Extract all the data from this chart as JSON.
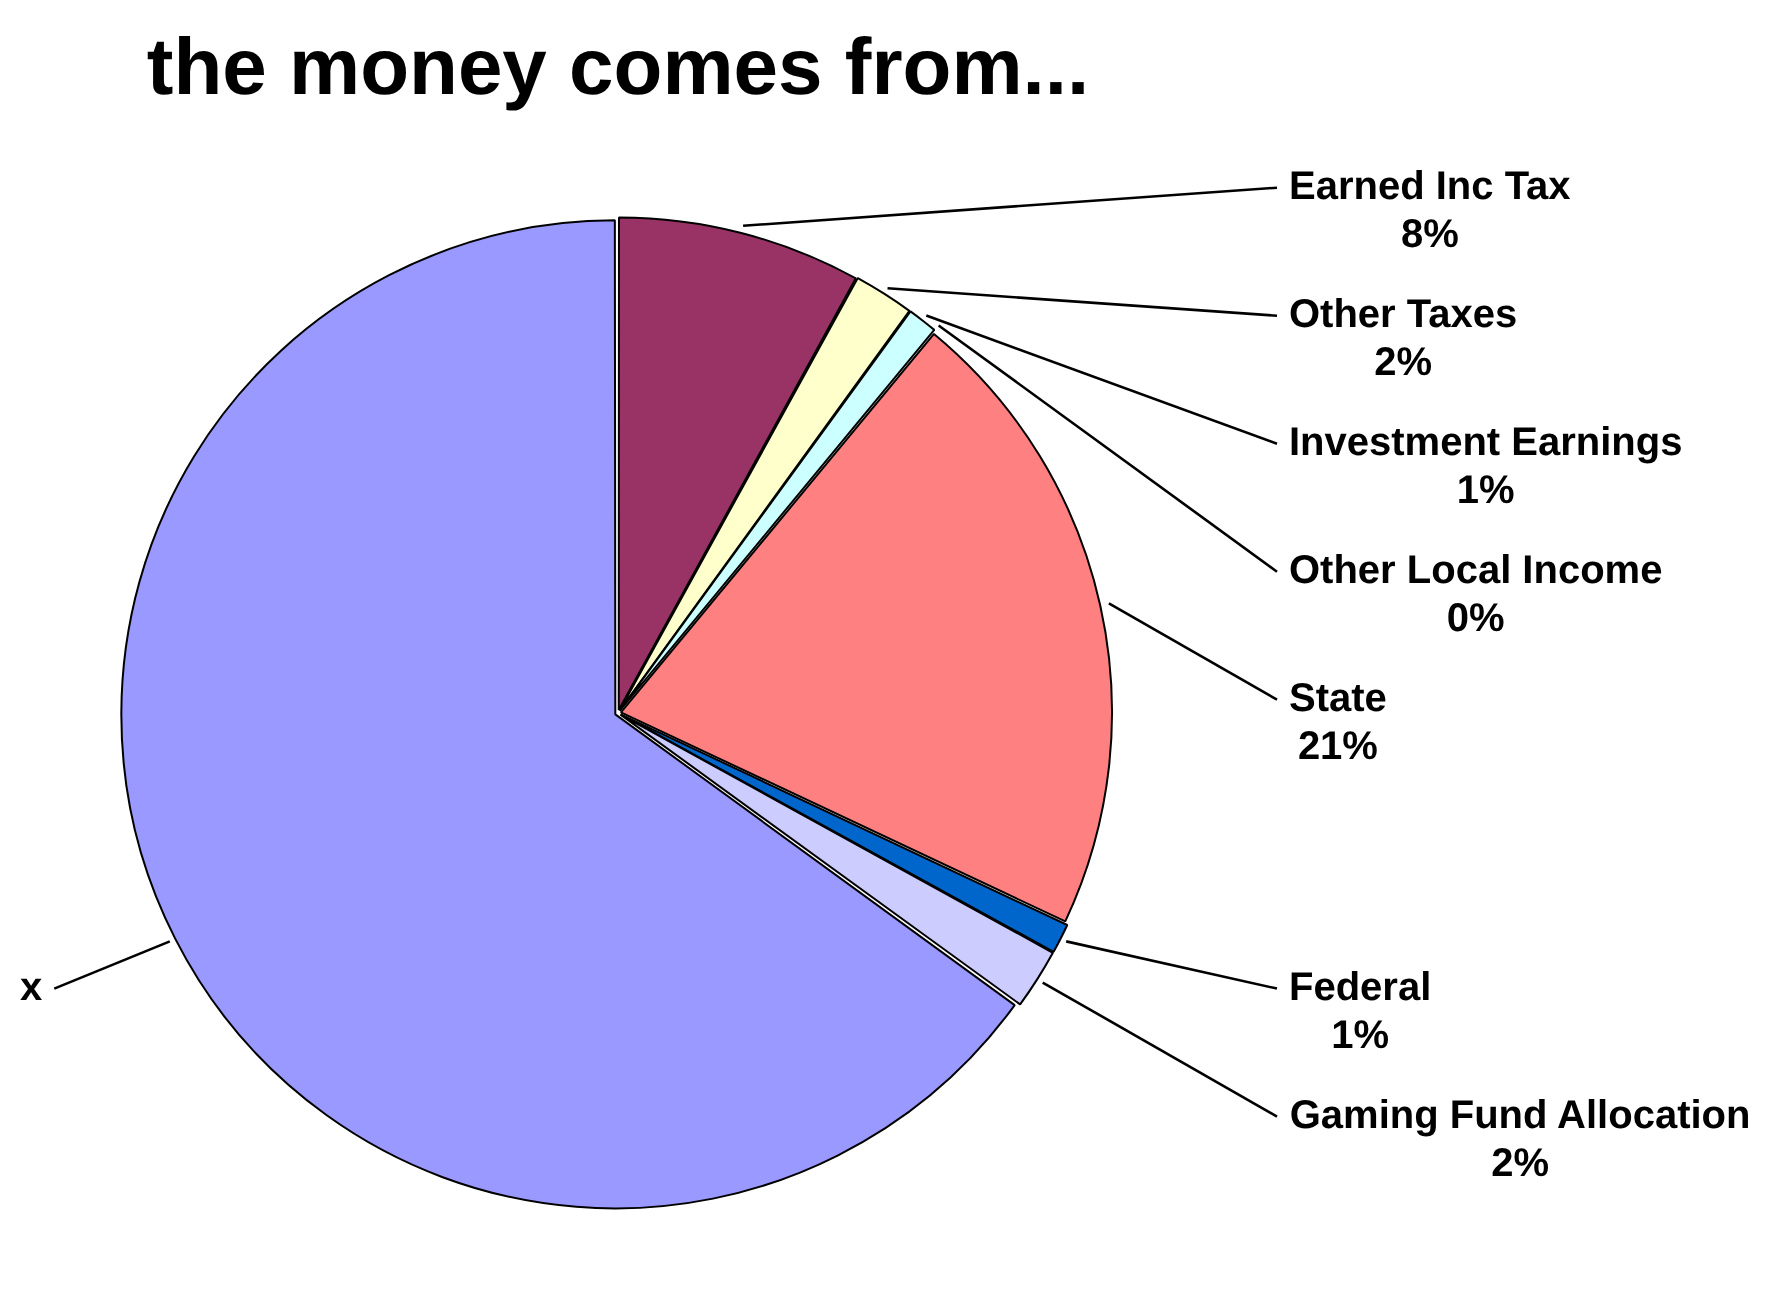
{
  "chart_data": {
    "type": "pie",
    "title": "the money comes from...",
    "categories": [
      "Earned Inc Tax",
      "Other Taxes",
      "Investment Earnings",
      "Other Local Income",
      "State",
      "Federal",
      "Gaming Fund Allocation",
      "x"
    ],
    "values": [
      8,
      2,
      1,
      0,
      21,
      1,
      2,
      65
    ],
    "value_labels": [
      "8%",
      "2%",
      "1%",
      "0%",
      "21%",
      "1%",
      "2%",
      null
    ],
    "colors": [
      "#993366",
      "#ffffcc",
      "#ccffff",
      "#660066",
      "#ff8080",
      "#0066cc",
      "#ccccff",
      "#9999ff"
    ],
    "legend": false
  }
}
